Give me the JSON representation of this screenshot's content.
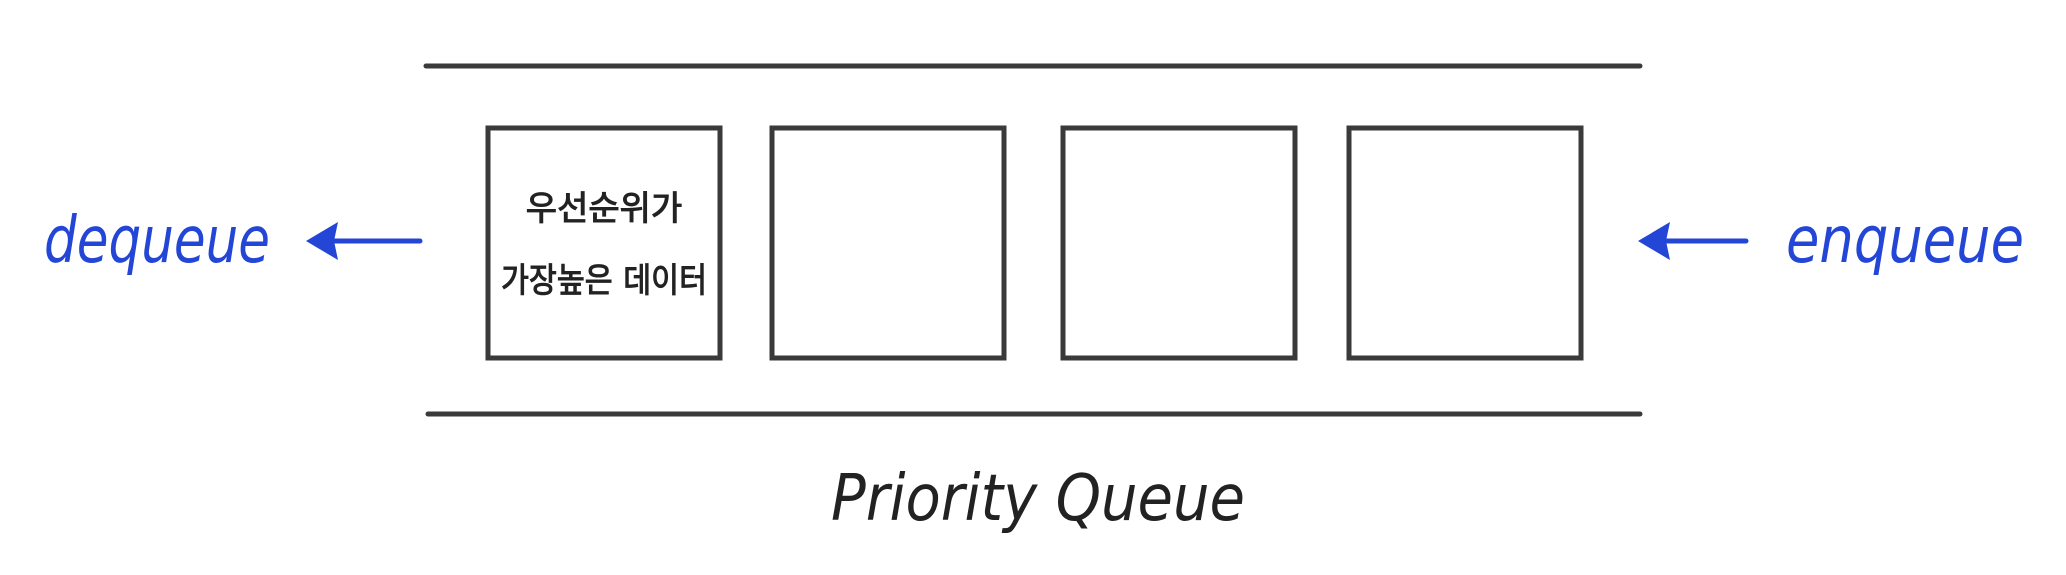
{
  "diagram": {
    "caption": "Priority Queue",
    "dequeue_label": "dequeue",
    "enqueue_label": "enqueue",
    "slots": [
      {
        "line1": "우선순위가",
        "line2": "가장높은 데이터"
      },
      {
        "line1": "",
        "line2": ""
      },
      {
        "line1": "",
        "line2": ""
      },
      {
        "line1": "",
        "line2": ""
      }
    ],
    "colors": {
      "ink": "#3a3a3a",
      "arrow": "#2346d6"
    }
  }
}
